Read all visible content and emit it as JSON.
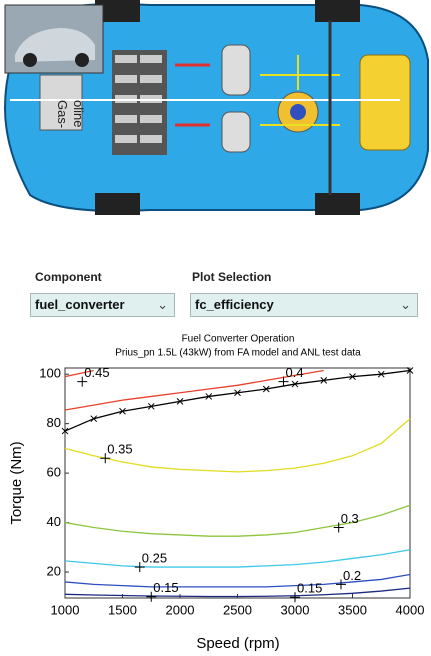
{
  "image": {
    "text": [
      "Gas-",
      "oline"
    ]
  },
  "controls": {
    "component_label": "Component",
    "component_value": "fuel_converter",
    "plot_label": "Plot Selection",
    "plot_value": "fc_efficiency"
  },
  "chart_data": {
    "type": "line",
    "title": "Fuel Converter Operation",
    "subtitle": "Prius_pn 1.5L (43kW) from FA model and ANL test data",
    "x_label": "Speed (rpm)",
    "y_label": "Torque (Nm)",
    "x": [
      1000,
      1250,
      1500,
      1750,
      2000,
      2250,
      2500,
      2750,
      3000,
      3250,
      3500,
      3750,
      4000
    ],
    "xlim": [
      1000,
      4000
    ],
    "xticks": [
      1000,
      1500,
      2000,
      2500,
      3000,
      3500,
      4000
    ],
    "ylim": [
      9.5,
      102.5
    ],
    "yticks": [
      20,
      40,
      60,
      80,
      100
    ],
    "series": [
      {
        "color": "#000000",
        "marker": "x",
        "values": [
          77,
          82,
          85,
          87,
          89,
          91,
          92.5,
          94,
          96,
          97.5,
          99,
          100,
          101.5
        ]
      },
      {
        "color": "#e8402a",
        "values": [
          99,
          101.5,
          null,
          null,
          null,
          null,
          null,
          null,
          null,
          null,
          null,
          null,
          null
        ]
      },
      {
        "color": "#e8402a",
        "values": [
          85.5,
          87.5,
          89.5,
          91,
          92.5,
          94,
          95.5,
          97.5,
          99.5,
          101.5,
          null,
          null,
          null
        ]
      },
      {
        "color": "#e2dc1e",
        "values": [
          70,
          67,
          64.5,
          62.5,
          61.5,
          61,
          60.5,
          61,
          62,
          64,
          67,
          72,
          82
        ]
      },
      {
        "color": "#8cc63e",
        "values": [
          40,
          38,
          36.5,
          35.5,
          35,
          34.5,
          34.5,
          35,
          36,
          38,
          40,
          43,
          47
        ]
      },
      {
        "color": "#3ec8e8",
        "values": [
          24.5,
          23.5,
          22.5,
          22,
          22,
          22,
          22,
          22.5,
          23,
          24,
          25.5,
          27,
          29
        ]
      },
      {
        "color": "#2c4fc0",
        "values": [
          16,
          15,
          14.5,
          14,
          14,
          14,
          14,
          14,
          14.5,
          15,
          16,
          17,
          19
        ]
      },
      {
        "color": "#1a2a80",
        "values": [
          11,
          10.7,
          10.5,
          10.3,
          10.2,
          10.1,
          10.1,
          10.2,
          10.4,
          10.8,
          11.4,
          12.3,
          13.5
        ]
      }
    ],
    "annotations": [
      {
        "text": "0.45",
        "x": 1150,
        "y": 97
      },
      {
        "text": "0.4",
        "x": 2900,
        "y": 97
      },
      {
        "text": "0.35",
        "x": 1350,
        "y": 66
      },
      {
        "text": "0.3",
        "x": 3380,
        "y": 38
      },
      {
        "text": "0.25",
        "x": 1650,
        "y": 22
      },
      {
        "text": "0.2",
        "x": 3400,
        "y": 15
      },
      {
        "text": "0.15",
        "x": 1750,
        "y": 10
      },
      {
        "text": "0.15",
        "x": 3000,
        "y": 9.8
      }
    ]
  }
}
